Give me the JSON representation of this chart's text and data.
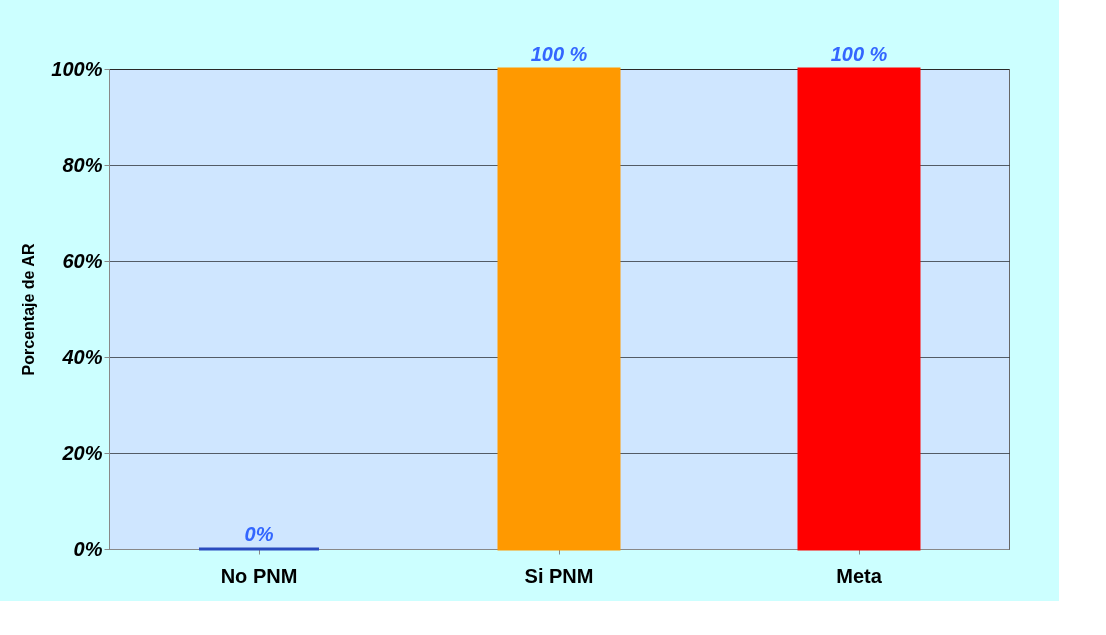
{
  "chart_data": {
    "type": "bar",
    "ylabel": "Porcentaje de AR",
    "categories": [
      "No PNM",
      "Si PNM",
      "Meta"
    ],
    "values": [
      0,
      100,
      100
    ],
    "colors": [
      "#2a4bbf",
      "#ff9900",
      "#ff0000"
    ],
    "value_labels": [
      "0%",
      "100 %",
      "100 %"
    ],
    "ylim": [
      0,
      100
    ],
    "yticks": [
      {
        "value": 0,
        "label": "0%"
      },
      {
        "value": 20,
        "label": "20%"
      },
      {
        "value": 40,
        "label": "40%"
      },
      {
        "value": 60,
        "label": "60%"
      },
      {
        "value": 80,
        "label": "80%"
      },
      {
        "value": 100,
        "label": "100%"
      }
    ],
    "grid": "y",
    "legend": false
  }
}
